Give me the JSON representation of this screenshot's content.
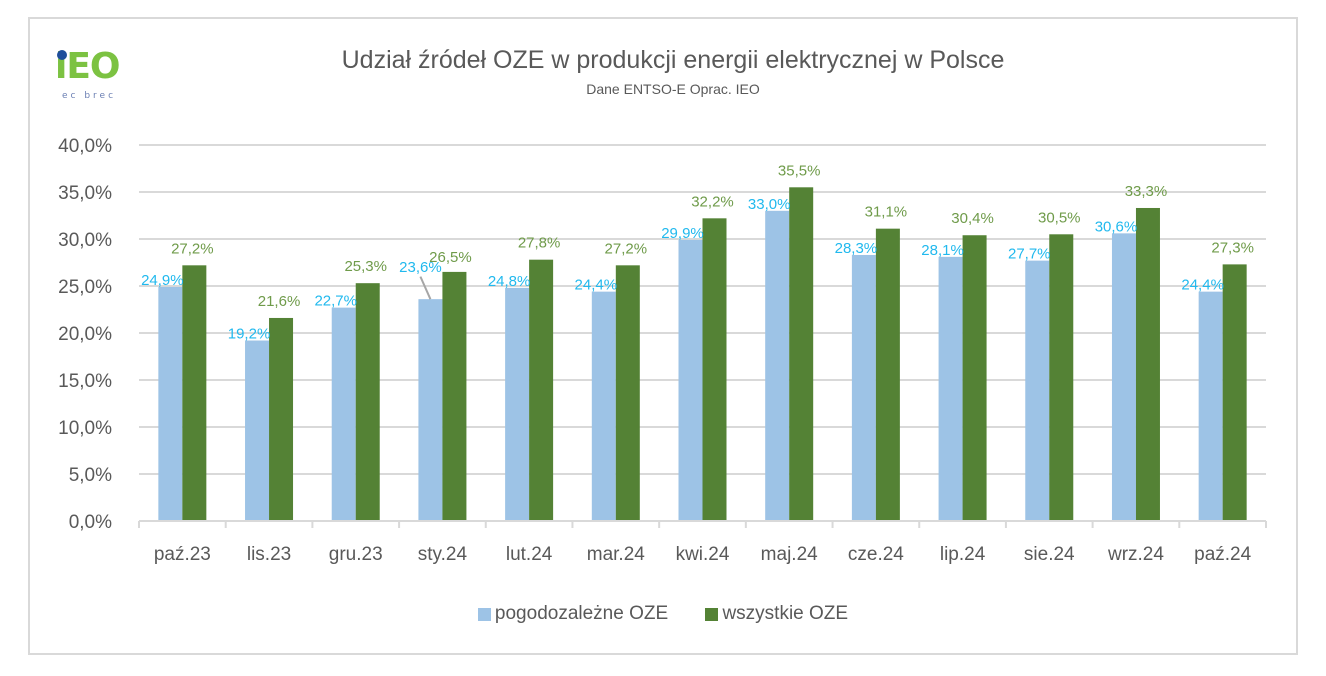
{
  "logo": {
    "text": "iEO",
    "subtext": "ec brec"
  },
  "colors": {
    "series1": "#9dc3e6",
    "series2": "#548235",
    "label1": "#21b9ee",
    "label2": "#6f9b4a",
    "grid": "#d9d9d9",
    "axis_text": "#595959"
  },
  "chart_data": {
    "type": "bar",
    "title": "Udział źródeł OZE w produkcji energii elektrycznej w Polsce",
    "subtitle": "Dane ENTSO-E Oprac. IEO",
    "xlabel": "",
    "ylabel": "",
    "ylim": [
      0,
      40
    ],
    "yticks": [
      0,
      5,
      10,
      15,
      20,
      25,
      30,
      35,
      40
    ],
    "ytick_labels": [
      "0,0%",
      "5,0%",
      "10,0%",
      "15,0%",
      "20,0%",
      "25,0%",
      "30,0%",
      "35,0%",
      "40,0%"
    ],
    "grid": true,
    "legend_position": "bottom",
    "categories": [
      "paź.23",
      "lis.23",
      "gru.23",
      "sty.24",
      "lut.24",
      "mar.24",
      "kwi.24",
      "maj.24",
      "cze.24",
      "lip.24",
      "sie.24",
      "wrz.24",
      "paź.24"
    ],
    "series": [
      {
        "name": "pogodozależne OZE",
        "values": [
          24.9,
          19.2,
          22.7,
          23.6,
          24.8,
          24.4,
          29.9,
          33.0,
          28.3,
          28.1,
          27.7,
          30.6,
          24.4
        ],
        "labels": [
          "24,9%",
          "19,2%",
          "22,7%",
          "23,6%",
          "24,8%",
          "24,4%",
          "29,9%",
          "33,0%",
          "28,3%",
          "28,1%",
          "27,7%",
          "30,6%",
          "24,4%"
        ]
      },
      {
        "name": "wszystkie OZE",
        "values": [
          27.2,
          21.6,
          25.3,
          26.5,
          27.8,
          27.2,
          32.2,
          35.5,
          31.1,
          30.4,
          30.5,
          33.3,
          27.3
        ],
        "labels": [
          "27,2%",
          "21,6%",
          "25,3%",
          "26,5%",
          "27,8%",
          "27,2%",
          "32,2%",
          "35,5%",
          "31,1%",
          "30,4%",
          "30,5%",
          "33,3%",
          "27,3%"
        ]
      }
    ]
  }
}
